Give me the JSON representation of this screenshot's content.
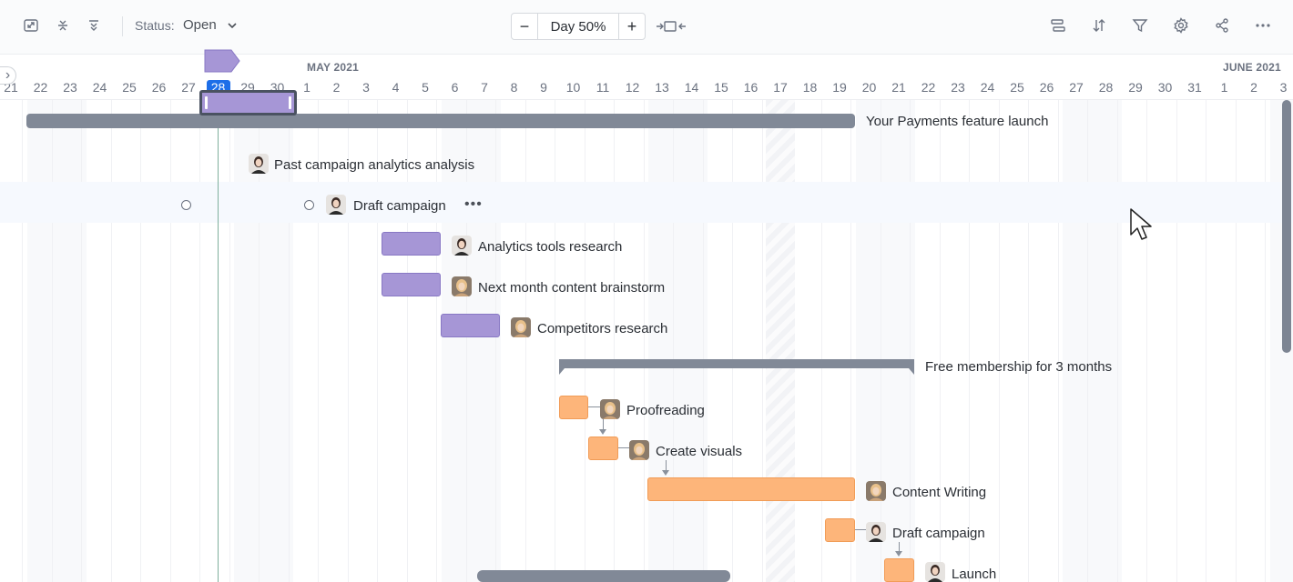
{
  "toolbar": {
    "status_label": "Status:",
    "status_value": "Open",
    "zoom_minus": "−",
    "zoom_value": "Day 50%",
    "zoom_plus": "+",
    "icons": [
      "expand-icon",
      "collapse-rows-icon",
      "expand-rows-icon",
      "fit-to-screen-icon",
      "group-icon",
      "sort-icon",
      "filter-icon",
      "settings-icon",
      "share-icon",
      "more-icon"
    ]
  },
  "timeline": {
    "months": [
      "MAY 2021",
      "JUNE 2021"
    ],
    "days": [
      "21",
      "22",
      "23",
      "24",
      "25",
      "26",
      "27",
      "28",
      "29",
      "30",
      "1",
      "2",
      "3",
      "4",
      "5",
      "6",
      "7",
      "8",
      "9",
      "10",
      "11",
      "12",
      "13",
      "14",
      "15",
      "16",
      "17",
      "18",
      "19",
      "20",
      "21",
      "22",
      "23",
      "24",
      "25",
      "26",
      "27",
      "28",
      "29",
      "30",
      "31",
      "1",
      "2",
      "3"
    ],
    "today": "28",
    "collapse": "›"
  },
  "tasks": {
    "summary_launch": "Your Payments feature launch",
    "past_campaign": "Past campaign analytics analysis",
    "draft_campaign": "Draft campaign",
    "more": "•••",
    "analytics_tools": "Analytics tools research",
    "content_brainstorm": "Next month content brainstorm",
    "competitors": "Competitors research",
    "group_membership": "Free membership for 3 months",
    "proofreading": "Proofreading",
    "create_visuals": "Create visuals",
    "content_writing": "Content Writing",
    "draft_campaign_2": "Draft campaign",
    "launch": "Launch"
  },
  "colors": {
    "purple": "#a696d6",
    "orange": "#fdb57a",
    "summary": "#818997",
    "today": "#1d6ee8"
  }
}
